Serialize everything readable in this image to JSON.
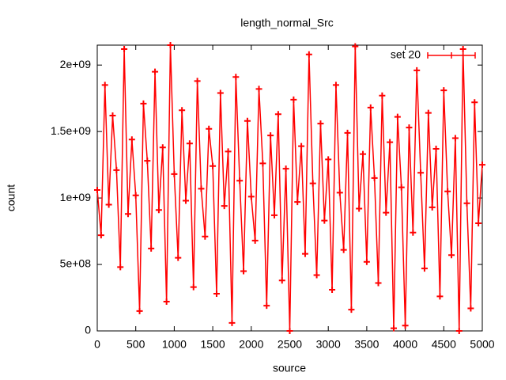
{
  "chart_data": {
    "type": "line",
    "title": "length_normal_Src",
    "x_label": "source",
    "y_label": "count",
    "series": [
      {
        "name": "set 20",
        "color": "#ff0000",
        "x": [
          0,
          50,
          100,
          150,
          200,
          250,
          300,
          350,
          400,
          450,
          500,
          550,
          600,
          650,
          700,
          750,
          800,
          850,
          900,
          950,
          1000,
          1050,
          1100,
          1150,
          1200,
          1250,
          1300,
          1350,
          1400,
          1450,
          1500,
          1550,
          1600,
          1650,
          1700,
          1750,
          1800,
          1850,
          1900,
          1950,
          2000,
          2050,
          2100,
          2150,
          2200,
          2250,
          2300,
          2350,
          2400,
          2450,
          2500,
          2550,
          2600,
          2650,
          2700,
          2750,
          2800,
          2850,
          2900,
          2950,
          3000,
          3050,
          3100,
          3150,
          3200,
          3250,
          3300,
          3350,
          3400,
          3450,
          3500,
          3550,
          3600,
          3650,
          3700,
          3750,
          3800,
          3850,
          3900,
          3950,
          4000,
          4050,
          4100,
          4150,
          4200,
          4250,
          4300,
          4350,
          4400,
          4450,
          4500,
          4550,
          4600,
          4650,
          4700,
          4750,
          4800,
          4850,
          4900,
          4950,
          5000
        ],
        "values": [
          1060000000.0,
          720000000.0,
          1850000000.0,
          950000000.0,
          1620000000.0,
          1210000000.0,
          480000000.0,
          2120000000.0,
          880000000.0,
          1440000000.0,
          1020000000.0,
          150000000.0,
          1710000000.0,
          1280000000.0,
          620000000.0,
          1950000000.0,
          910000000.0,
          1380000000.0,
          220000000.0,
          2150000000.0,
          1180000000.0,
          550000000.0,
          1660000000.0,
          980000000.0,
          1410000000.0,
          330000000.0,
          1880000000.0,
          1070000000.0,
          710000000.0,
          1520000000.0,
          1240000000.0,
          280000000.0,
          1790000000.0,
          940000000.0,
          1350000000.0,
          60000000.0,
          1910000000.0,
          1130000000.0,
          450000000.0,
          1580000000.0,
          1010000000.0,
          680000000.0,
          1820000000.0,
          1260000000.0,
          190000000.0,
          1470000000.0,
          870000000.0,
          1630000000.0,
          380000000.0,
          1220000000.0,
          0,
          1740000000.0,
          970000000.0,
          1390000000.0,
          580000000.0,
          2080000000.0,
          1110000000.0,
          420000000.0,
          1560000000.0,
          830000000.0,
          1290000000.0,
          310000000.0,
          1850000000.0,
          1040000000.0,
          610000000.0,
          1490000000.0,
          160000000.0,
          2140000000.0,
          920000000.0,
          1330000000.0,
          520000000.0,
          1680000000.0,
          1150000000.0,
          360000000.0,
          1770000000.0,
          890000000.0,
          1420000000.0,
          20000000.0,
          1610000000.0,
          1080000000.0,
          40000000.0,
          1530000000.0,
          740000000.0,
          1960000000.0,
          1190000000.0,
          470000000.0,
          1640000000.0,
          930000000.0,
          1370000000.0,
          260000000.0,
          1810000000.0,
          1050000000.0,
          570000000.0,
          1450000000.0,
          0,
          2120000000.0,
          960000000.0,
          170000000.0,
          1720000000.0,
          810000000.0,
          1250000000.0
        ]
      }
    ],
    "xlim": [
      0,
      5000
    ],
    "xticks": [
      0,
      500,
      1000,
      1500,
      2000,
      2500,
      3000,
      3500,
      4000,
      4500,
      5000
    ],
    "ylim": [
      0,
      2150000000
    ],
    "yticks": [
      0,
      {
        "value": 500000000,
        "label": "5e+08"
      },
      {
        "value": 1000000000,
        "label": "1e+09"
      },
      {
        "value": 1500000000,
        "label": "1.5e+09"
      },
      {
        "value": 2000000000,
        "label": "2e+09"
      }
    ],
    "legend": "top-right"
  }
}
